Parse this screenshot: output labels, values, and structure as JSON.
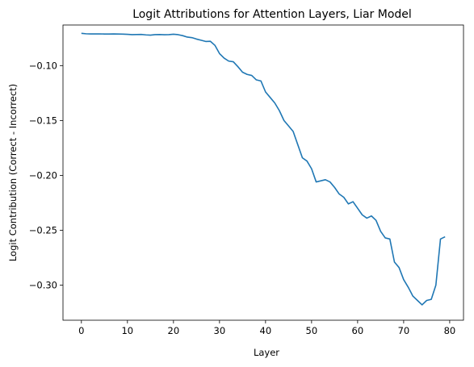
{
  "chart_data": {
    "type": "line",
    "title": "Logit Attributions for Attention Layers, Liar Model",
    "xlabel": "Layer",
    "ylabel": "Logit Contribution (Correct - Incorrect)",
    "xlim": [
      -4,
      83
    ],
    "ylim": [
      -0.332,
      -0.063
    ],
    "xticks": [
      0,
      10,
      20,
      30,
      40,
      50,
      60,
      70,
      80
    ],
    "xtick_labels": [
      "0",
      "10",
      "20",
      "30",
      "40",
      "50",
      "60",
      "70",
      "80"
    ],
    "yticks": [
      -0.1,
      -0.15,
      -0.2,
      -0.25,
      -0.3
    ],
    "ytick_labels": [
      "−0.10",
      "−0.15",
      "−0.20",
      "−0.25",
      "−0.30"
    ],
    "grid": false,
    "color": "#1f77b4",
    "series": [
      {
        "x": [
          0,
          1,
          2,
          3,
          4,
          5,
          6,
          7,
          8,
          9,
          10,
          11,
          12,
          13,
          14,
          15,
          16,
          17,
          18,
          19,
          20,
          21,
          22,
          23,
          24,
          25,
          26,
          27,
          28,
          29,
          30,
          31,
          32,
          33,
          34,
          35,
          36,
          37,
          38,
          39,
          40,
          41,
          42,
          43,
          44,
          45,
          46,
          47,
          48,
          49,
          50,
          51,
          52,
          53,
          54,
          55,
          56,
          57,
          58,
          59,
          60,
          61,
          62,
          63,
          64,
          65,
          66,
          67,
          68,
          69,
          70,
          71,
          72,
          73,
          74,
          75,
          76,
          77,
          78,
          79
        ],
        "y": [
          -0.0706,
          -0.071,
          -0.0711,
          -0.0711,
          -0.0711,
          -0.0712,
          -0.0712,
          -0.0711,
          -0.0712,
          -0.0713,
          -0.0715,
          -0.0718,
          -0.0717,
          -0.0716,
          -0.072,
          -0.0722,
          -0.0718,
          -0.0717,
          -0.0719,
          -0.0718,
          -0.0714,
          -0.0718,
          -0.0727,
          -0.074,
          -0.0745,
          -0.0758,
          -0.0769,
          -0.078,
          -0.0778,
          -0.0815,
          -0.089,
          -0.0932,
          -0.0959,
          -0.0965,
          -0.101,
          -0.106,
          -0.108,
          -0.109,
          -0.113,
          -0.114,
          -0.124,
          -0.129,
          -0.134,
          -0.141,
          -0.15,
          -0.155,
          -0.16,
          -0.172,
          -0.184,
          -0.187,
          -0.194,
          -0.206,
          -0.205,
          -0.204,
          -0.206,
          -0.211,
          -0.217,
          -0.22,
          -0.226,
          -0.224,
          -0.23,
          -0.236,
          -0.239,
          -0.237,
          -0.241,
          -0.251,
          -0.257,
          -0.258,
          -0.279,
          -0.284,
          -0.295,
          -0.302,
          -0.31,
          -0.314,
          -0.318,
          -0.314,
          -0.313,
          -0.3,
          -0.258,
          -0.256
        ]
      }
    ]
  }
}
